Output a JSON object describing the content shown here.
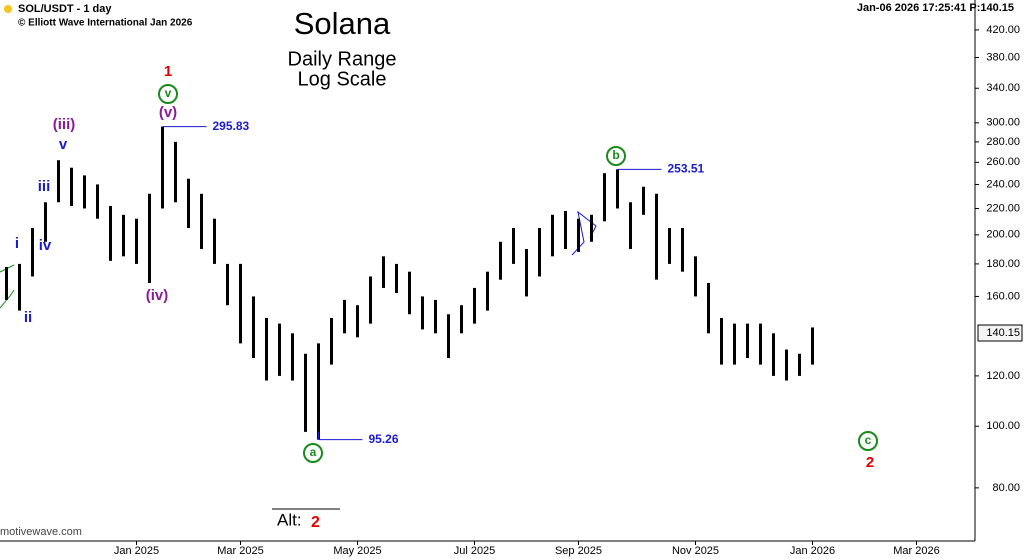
{
  "chart_data": {
    "type": "ohlc",
    "symbol": "SOL/USDT - 1 day",
    "copyright": "© Elliott Wave International Jan 2026",
    "title": "Solana",
    "subtitle": [
      "Daily Range",
      "Log Scale"
    ],
    "timestamp": "Jan-06 2026  17:25:41  P:140.15",
    "watermark": "motivewave.com",
    "alt_label": "Alt:",
    "alt_value": "2",
    "log_scale": true,
    "color": "#000000",
    "ylim": [
      66,
      468
    ],
    "yticks": [
      {
        "value": 80,
        "label": "80.00"
      },
      {
        "value": 100,
        "label": "100.00"
      },
      {
        "value": 120,
        "label": "120.00"
      },
      {
        "value": 160,
        "label": "160.00"
      },
      {
        "value": 180,
        "label": "180.00"
      },
      {
        "value": 200,
        "label": "200.00"
      },
      {
        "value": 220,
        "label": "220.00"
      },
      {
        "value": 240,
        "label": "240.00"
      },
      {
        "value": 260,
        "label": "260.00"
      },
      {
        "value": 280,
        "label": "280.00"
      },
      {
        "value": 300,
        "label": "300.00"
      },
      {
        "value": 340,
        "label": "340.00"
      },
      {
        "value": 380,
        "label": "380.00"
      },
      {
        "value": 420,
        "label": "420.00"
      }
    ],
    "last_price": 140.15,
    "categories": [
      null,
      null,
      null,
      null,
      null,
      null,
      null,
      null,
      null,
      null,
      "Jan 2025",
      null,
      null,
      null,
      null,
      null,
      null,
      null,
      "Mar 2025",
      null,
      null,
      null,
      null,
      null,
      null,
      null,
      null,
      "May 2025",
      null,
      null,
      null,
      null,
      null,
      null,
      null,
      null,
      "Jul 2025",
      null,
      null,
      null,
      null,
      null,
      null,
      null,
      "Sep 2025",
      null,
      null,
      null,
      null,
      null,
      null,
      null,
      null,
      "Nov 2025",
      null,
      null,
      null,
      null,
      null,
      null,
      null,
      null,
      "Jan 2026",
      null,
      null,
      null,
      null,
      null,
      null,
      null,
      "Mar 2026",
      null,
      null,
      null,
      null
    ],
    "high": [
      178,
      180,
      205,
      225,
      262,
      255,
      248,
      240,
      222,
      215,
      212,
      232,
      295.83,
      280,
      245,
      232,
      212,
      180,
      180,
      160,
      148,
      145,
      140,
      130,
      135,
      148,
      158,
      155,
      172,
      185,
      180,
      175,
      160,
      158,
      150,
      155,
      165,
      175,
      195,
      205,
      190,
      205,
      215,
      218,
      212,
      215,
      250,
      253.51,
      225,
      238,
      232,
      205,
      205,
      185,
      168,
      148,
      145,
      145,
      145,
      140,
      132,
      130,
      143,
      null,
      null,
      null,
      null,
      null,
      null,
      null,
      null,
      null,
      null,
      null,
      null
    ],
    "low": [
      158,
      152,
      172,
      195,
      225,
      222,
      220,
      212,
      182,
      185,
      180,
      168,
      220,
      225,
      205,
      190,
      180,
      155,
      135,
      128,
      118,
      120,
      118,
      98,
      95.26,
      125,
      140,
      138,
      145,
      165,
      162,
      150,
      142,
      140,
      128,
      140,
      145,
      152,
      170,
      180,
      160,
      172,
      185,
      190,
      188,
      195,
      210,
      220,
      190,
      215,
      170,
      180,
      175,
      160,
      140,
      125,
      125,
      128,
      125,
      120,
      118,
      120,
      125,
      null,
      null,
      null,
      null,
      null,
      null,
      null,
      null,
      null,
      null,
      null,
      null
    ],
    "callouts": [
      295.83,
      253.51,
      95.26
    ],
    "annotations": [
      {
        "text": "1",
        "color": "#e00000"
      },
      {
        "text": "v",
        "color": "#1a8a1a"
      },
      {
        "text": "(v)",
        "color": "#8b1a9b"
      },
      {
        "text": "(iii)",
        "color": "#8b1a9b"
      },
      {
        "text": "v",
        "color": "#1a1ad0"
      },
      {
        "text": "iii",
        "color": "#1a1ad0"
      },
      {
        "text": "i",
        "color": "#1a1ad0"
      },
      {
        "text": "iv",
        "color": "#1a1ad0"
      },
      {
        "text": "ii",
        "color": "#1a1ad0"
      },
      {
        "text": "(iv)",
        "color": "#8b1a9b"
      },
      {
        "text": "a",
        "color": "#1a8a1a"
      },
      {
        "text": "b",
        "color": "#1a8a1a"
      },
      {
        "text": "c",
        "color": "#1a8a1a"
      },
      {
        "text": "2",
        "color": "#e00000"
      }
    ]
  }
}
